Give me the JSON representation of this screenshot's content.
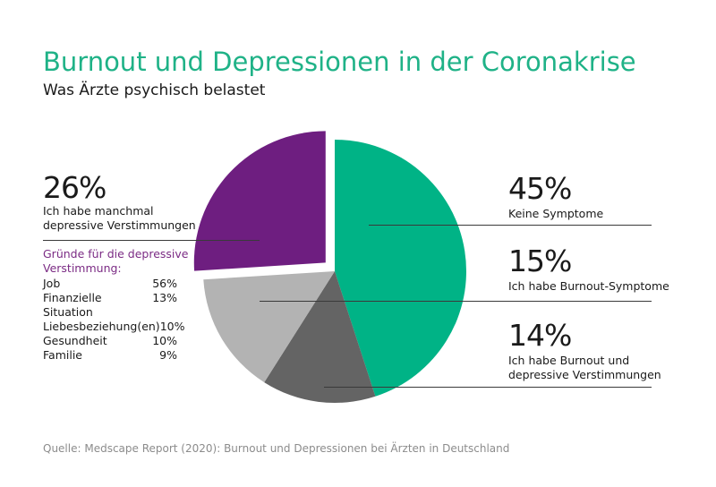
{
  "header": {
    "title": "Burnout und Depressionen in der Coronakrise",
    "subtitle": "Was Ärzte psychisch belastet"
  },
  "chart_data": {
    "type": "pie",
    "title": "Burnout und Depressionen in der Coronakrise",
    "subtitle": "Was Ärzte psychisch belastet",
    "start_angle_deg": 0,
    "direction": "clockwise",
    "slices": [
      {
        "key": "keine",
        "value": 45,
        "pct_label": "45%",
        "label_lines": [
          "Keine Symptome"
        ],
        "color": "#00b386",
        "exploded": false
      },
      {
        "key": "kombi",
        "value": 14,
        "pct_label": "",
        "label_lines": [],
        "color": "#646464",
        "exploded": false
      },
      {
        "key": "burnout",
        "value": 15,
        "pct_label": "",
        "label_lines": [],
        "color": "#b3b3b3",
        "exploded": false
      },
      {
        "key": "depressiv",
        "value": 26,
        "pct_label": "26%",
        "label_lines": [
          "Ich habe manchmal",
          "depressive Verstimmungen"
        ],
        "color": "#6e1e80",
        "exploded": true
      }
    ],
    "extra_labels": [
      {
        "key": "burnout",
        "pct_label": "15%",
        "label_lines": [
          "Ich habe Burnout-Symptome"
        ]
      },
      {
        "key": "kombi",
        "pct_label": "14%",
        "label_lines": [
          "Ich habe Burnout und",
          "depressive Verstimmungen"
        ]
      }
    ]
  },
  "reasons": {
    "heading_lines": [
      "Gründe für die depressive",
      "Verstimmung:"
    ],
    "items": [
      {
        "label": "Job",
        "value": "56%"
      },
      {
        "label": "Finanzielle Situation",
        "value": "13%"
      },
      {
        "label": "Liebesbeziehung(en)",
        "value": "10%"
      },
      {
        "label": "Gesundheit",
        "value": "10%"
      },
      {
        "label": "Familie",
        "value": "9%"
      }
    ]
  },
  "labels": {
    "left_pct": "26%",
    "left_l1": "Ich habe manchmal",
    "left_l2": "depressive Verstimmungen",
    "r1_pct": "45%",
    "r1_l1": "Keine Symptome",
    "r2_pct": "15%",
    "r2_l1": "Ich habe Burnout-Symptome",
    "r3_pct": "14%",
    "r3_l1": "Ich habe Burnout und",
    "r3_l2": "depressive Verstimmungen"
  },
  "source": "Quelle: Medscape Report (2020): Burnout und Depressionen bei Ärzten in Deutschland"
}
